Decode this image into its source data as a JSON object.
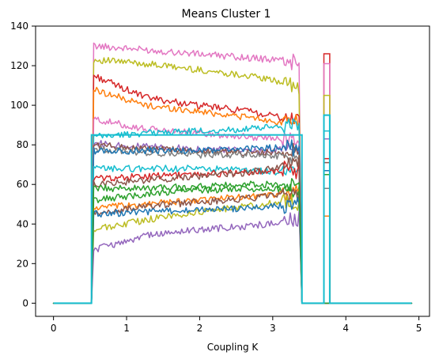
{
  "chart_data": {
    "type": "line",
    "title": "Means Cluster 1",
    "xlabel": "Coupling K",
    "ylabel": "",
    "xlim": [
      -0.245,
      5.145
    ],
    "ylim": [
      -6.65,
      140
    ],
    "grid": false,
    "legend": "none",
    "x_ticks": [
      0,
      1,
      2,
      3,
      4,
      5
    ],
    "y_ticks": [
      0,
      20,
      40,
      60,
      80,
      100,
      120,
      140
    ],
    "x_tick_labels": [
      "0",
      "1",
      "2",
      "3",
      "4",
      "5"
    ],
    "y_tick_labels": [
      "0",
      "20",
      "40",
      "60",
      "80",
      "100",
      "120",
      "140"
    ],
    "shape": {
      "x_start": 0,
      "x_rise": 0.52,
      "x_active_end": 3.36,
      "x_drop": 3.4,
      "x_pulse_start": 3.7,
      "x_pulse_end": 3.78,
      "x_end": 4.9,
      "baseline": 0
    },
    "series": [
      {
        "color": "#e377c2",
        "values": [
          130,
          128,
          126,
          124,
          122
        ]
      },
      {
        "color": "#bcbd22",
        "values": [
          123,
          121,
          118,
          115,
          110
        ]
      },
      {
        "color": "#d62728",
        "values": [
          115,
          104,
          100,
          97,
          92
        ]
      },
      {
        "color": "#ff7f0e",
        "values": [
          108,
          100,
          97,
          94,
          90
        ]
      },
      {
        "color": "#e377c2",
        "values": [
          93,
          88,
          86,
          84,
          83
        ]
      },
      {
        "color": "#17becf",
        "values": [
          84,
          86,
          87,
          88,
          90
        ]
      },
      {
        "color": "#9467bd",
        "values": [
          81,
          79,
          78,
          77,
          78
        ]
      },
      {
        "color": "#8c564b",
        "values": [
          80,
          78,
          77,
          76,
          76
        ]
      },
      {
        "color": "#7f7f7f",
        "values": [
          78,
          76,
          75,
          75,
          74
        ]
      },
      {
        "color": "#1f77b4",
        "values": [
          77,
          77,
          77,
          78,
          79
        ]
      },
      {
        "color": "#17becf",
        "values": [
          68,
          68,
          68,
          67,
          66
        ]
      },
      {
        "color": "#d62728",
        "values": [
          63,
          64,
          65,
          66,
          68
        ]
      },
      {
        "color": "#8c564b",
        "values": [
          60,
          62,
          64,
          66,
          70
        ]
      },
      {
        "color": "#2ca02c",
        "values": [
          52,
          55,
          57,
          58,
          57
        ]
      },
      {
        "color": "#ff7f0e",
        "values": [
          48,
          50,
          52,
          54,
          56
        ]
      },
      {
        "color": "#8c564b",
        "values": [
          45,
          49,
          51,
          53,
          55
        ]
      },
      {
        "color": "#bcbd22",
        "values": [
          37,
          42,
          46,
          49,
          52
        ]
      },
      {
        "color": "#1f77b4",
        "values": [
          45,
          46,
          47,
          48,
          50
        ]
      },
      {
        "color": "#9467bd",
        "values": [
          27,
          34,
          37,
          39,
          42
        ]
      },
      {
        "color": "#2ca02c",
        "values": [
          58,
          58,
          59,
          60,
          60
        ]
      }
    ],
    "pulse_segments": [
      {
        "color": "#d62728",
        "value": 126
      },
      {
        "color": "#e377c2",
        "value": 121
      },
      {
        "color": "#bcbd22",
        "value": 105
      },
      {
        "color": "#17becf",
        "value": 95
      },
      {
        "color": "#17becf",
        "value": 87
      },
      {
        "color": "#9467bd",
        "value": 83
      },
      {
        "color": "#d62728",
        "value": 73
      },
      {
        "color": "#8c564b",
        "value": 71
      },
      {
        "color": "#1f77b4",
        "value": 67
      },
      {
        "color": "#2ca02c",
        "value": 65
      },
      {
        "color": "#7f7f7f",
        "value": 58
      },
      {
        "color": "#ff7f0e",
        "value": 44
      }
    ],
    "final_series": {
      "color": "#17becf",
      "active_value": 85,
      "pulse_value": 95
    }
  }
}
